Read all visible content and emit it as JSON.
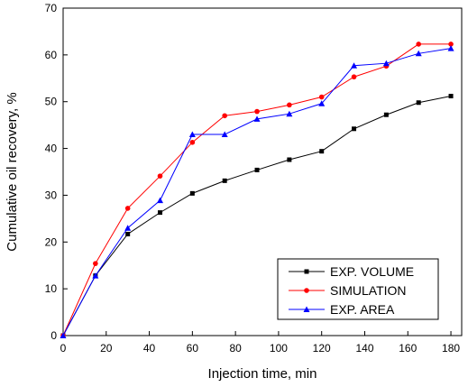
{
  "chart_data": {
    "type": "line",
    "title": "",
    "xlabel": "Injection time, min",
    "ylabel": "Cumulative oil recovery, %",
    "xlim": [
      0,
      185
    ],
    "ylim": [
      0,
      70
    ],
    "x_ticks": [
      0,
      20,
      40,
      60,
      80,
      100,
      120,
      140,
      160,
      180
    ],
    "y_ticks": [
      0,
      10,
      20,
      30,
      40,
      50,
      60,
      70
    ],
    "grid": false,
    "legend_position": "bottom-right",
    "series": [
      {
        "name": "EXP. VOLUME",
        "color": "#000000",
        "marker": "square",
        "x": [
          0,
          15,
          30,
          45,
          60,
          75,
          90,
          105,
          120,
          135,
          150,
          165,
          180
        ],
        "y": [
          0,
          12.8,
          21.7,
          26.3,
          30.4,
          33.1,
          35.4,
          37.6,
          39.4,
          44.2,
          47.2,
          49.8,
          51.2
        ]
      },
      {
        "name": "SIMULATION",
        "color": "#ff0000",
        "marker": "circle",
        "x": [
          0,
          15,
          30,
          45,
          60,
          75,
          90,
          105,
          120,
          135,
          150,
          165,
          180
        ],
        "y": [
          0,
          15.4,
          27.2,
          34.1,
          41.3,
          47.0,
          47.9,
          49.3,
          51.0,
          55.3,
          57.6,
          62.3,
          62.3
        ]
      },
      {
        "name": "EXP. AREA",
        "color": "#0000ff",
        "marker": "triangle",
        "x": [
          0,
          15,
          30,
          45,
          60,
          75,
          90,
          105,
          120,
          135,
          150,
          165,
          180
        ],
        "y": [
          0,
          12.8,
          23.0,
          28.9,
          43.0,
          43.0,
          46.3,
          47.4,
          49.6,
          57.7,
          58.2,
          60.3,
          61.4
        ]
      }
    ]
  }
}
